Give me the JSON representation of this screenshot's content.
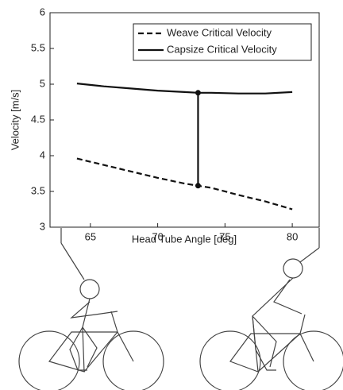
{
  "chart_data": {
    "type": "line",
    "x_label": "Head Tube Angle [deg]",
    "y_label": "Velocity [m/s]",
    "x": [
      64,
      66,
      68,
      70,
      72,
      73,
      74,
      76,
      78,
      80
    ],
    "series": [
      {
        "name": "Weave Critical Velocity",
        "color": "#111111",
        "linestyle": "dashed",
        "values": [
          3.96,
          3.87,
          3.78,
          3.69,
          3.61,
          3.58,
          3.55,
          3.45,
          3.36,
          3.25
        ]
      },
      {
        "name": "Capsize Critical Velocity",
        "color": "#111111",
        "linestyle": "solid",
        "values": [
          5.01,
          4.97,
          4.94,
          4.91,
          4.89,
          4.88,
          4.88,
          4.87,
          4.87,
          4.89
        ]
      }
    ],
    "xlim": [
      62,
      82
    ],
    "xticks": [
      65,
      70,
      75,
      80
    ],
    "ylim": [
      3,
      6
    ],
    "yticks": [
      3,
      3.5,
      4,
      4.5,
      5,
      5.5,
      6
    ],
    "grid": false,
    "legend": "upper right"
  }
}
